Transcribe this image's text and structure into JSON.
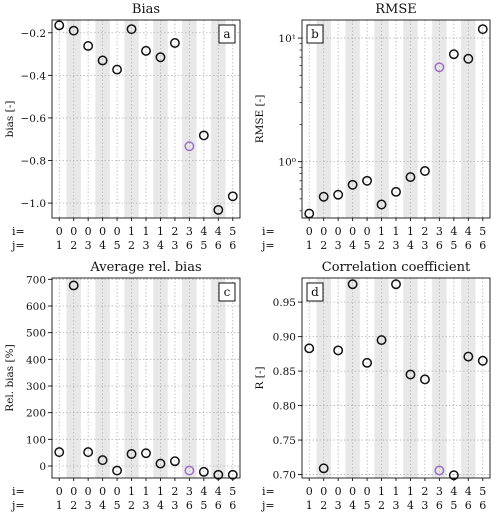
{
  "figure": {
    "row_labels": [
      "i=",
      "j="
    ],
    "pairs_i": [
      "0",
      "0",
      "0",
      "0",
      "0",
      "1",
      "1",
      "1",
      "2",
      "3",
      "4",
      "4",
      "5"
    ],
    "pairs_j": [
      "1",
      "2",
      "3",
      "4",
      "5",
      "2",
      "3",
      "4",
      "3",
      "6",
      "5",
      "6",
      "6"
    ],
    "colors": {
      "marker": "#111111",
      "highlight": "#9b6fc0",
      "band": "#e8e8e8",
      "grid": "#b4b4b4"
    }
  },
  "chart_data": [
    {
      "type": "scatter",
      "title": "Bias",
      "panel_label": "a",
      "ylabel": "bias [-]",
      "scale": "linear",
      "ylim": [
        -1.07,
        -0.14
      ],
      "yticks": [
        -1.0,
        -0.8,
        -0.6,
        -0.4,
        -0.2
      ],
      "ytick_labels": [
        "−1.0",
        "−0.8",
        "−0.6",
        "−0.4",
        "−0.2"
      ],
      "values": [
        -0.165,
        -0.19,
        -0.262,
        -0.33,
        -0.373,
        -0.183,
        -0.285,
        -0.315,
        -0.248,
        -0.733,
        -0.682,
        -1.032,
        -0.968
      ],
      "highlight_index": 9
    },
    {
      "type": "scatter",
      "title": "RMSE",
      "panel_label": "b",
      "ylabel": "RMSE [-]",
      "scale": "log",
      "ylim": [
        0.35,
        14
      ],
      "yticks": [
        1,
        10
      ],
      "ytick_labels": [
        "10⁰",
        "10¹"
      ],
      "values": [
        0.38,
        0.52,
        0.54,
        0.65,
        0.7,
        0.45,
        0.57,
        0.75,
        0.84,
        5.8,
        7.4,
        6.8,
        11.8
      ],
      "highlight_index": 9
    },
    {
      "type": "scatter",
      "title": "Average rel. bias",
      "panel_label": "c",
      "ylabel": "Rel. bias [%]",
      "scale": "linear",
      "ylim": [
        -45,
        705
      ],
      "yticks": [
        0,
        100,
        200,
        300,
        400,
        500,
        600,
        700
      ],
      "ytick_labels": [
        "0",
        "100",
        "200",
        "300",
        "400",
        "500",
        "600",
        "700"
      ],
      "values": [
        52,
        677,
        52,
        22,
        -17,
        45,
        48,
        9,
        18,
        -17,
        -22,
        -33,
        -33
      ],
      "highlight_index": 9
    },
    {
      "type": "scatter",
      "title": "Correlation coefficient",
      "panel_label": "d",
      "ylabel": "R [-]",
      "scale": "linear",
      "ylim": [
        0.695,
        0.985
      ],
      "yticks": [
        0.7,
        0.75,
        0.8,
        0.85,
        0.9,
        0.95
      ],
      "ytick_labels": [
        "0.70",
        "0.75",
        "0.80",
        "0.85",
        "0.90",
        "0.95"
      ],
      "values": [
        0.883,
        0.709,
        0.88,
        0.976,
        0.862,
        0.895,
        0.976,
        0.845,
        0.838,
        0.706,
        0.699,
        0.871,
        0.865
      ],
      "highlight_index": 9
    }
  ]
}
